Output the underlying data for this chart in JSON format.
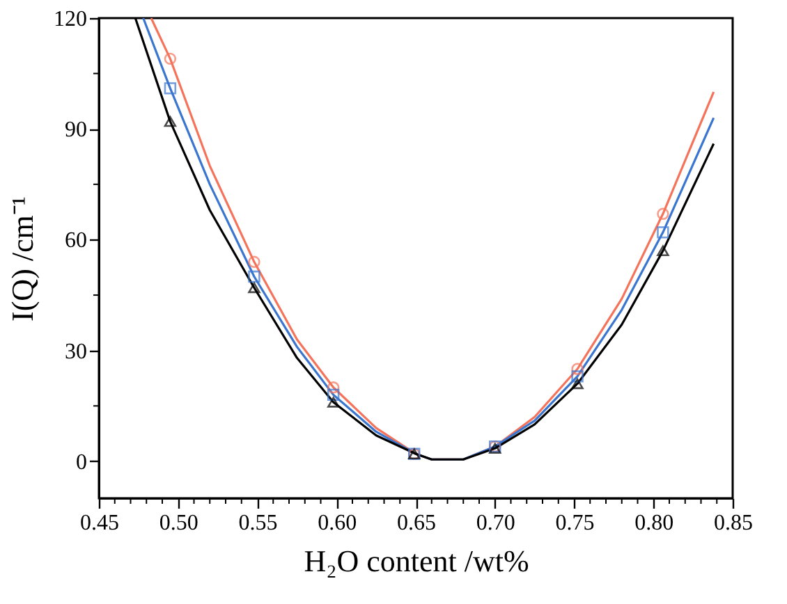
{
  "chart_data": {
    "type": "scatter",
    "xlabel": "H₂O content /wt%",
    "ylabel": "I(Q) /cm⁻¹",
    "xlim": [
      0.45,
      0.85
    ],
    "ylim": [
      -10,
      120
    ],
    "xticks": [
      0.45,
      {
        "value": 0.46,
        "label": null
      },
      {
        "value": 0.47,
        "label": null
      },
      {
        "value": 0.48,
        "label": null
      },
      {
        "value": 0.49,
        "label": null
      },
      "0.50",
      {
        "value": 0.51,
        "label": null
      },
      {
        "value": 0.52,
        "label": null
      },
      {
        "value": 0.53,
        "label": null
      },
      {
        "value": 0.54,
        "label": null
      },
      0.55,
      {
        "value": 0.56,
        "label": null
      },
      {
        "value": 0.57,
        "label": null
      },
      {
        "value": 0.58,
        "label": null
      },
      {
        "value": 0.59,
        "label": null
      },
      "0.60",
      {
        "value": 0.61,
        "label": null
      },
      {
        "value": 0.62,
        "label": null
      },
      {
        "value": 0.63,
        "label": null
      },
      {
        "value": 0.64,
        "label": null
      },
      0.65,
      {
        "value": 0.66,
        "label": null
      },
      {
        "value": 0.67,
        "label": null
      },
      {
        "value": 0.68,
        "label": null
      },
      {
        "value": 0.69,
        "label": null
      },
      "0.70",
      {
        "value": 0.71,
        "label": null
      },
      {
        "value": 0.72,
        "label": null
      },
      {
        "value": 0.73,
        "label": null
      },
      {
        "value": 0.74,
        "label": null
      },
      0.75,
      {
        "value": 0.76,
        "label": null
      },
      {
        "value": 0.77,
        "label": null
      },
      {
        "value": 0.78,
        "label": null
      },
      {
        "value": 0.79,
        "label": null
      },
      "0.80",
      {
        "value": 0.81,
        "label": null
      },
      {
        "value": 0.82,
        "label": null
      },
      {
        "value": 0.83,
        "label": null
      },
      {
        "value": 0.84,
        "label": null
      },
      0.85
    ],
    "yticks": [
      0,
      {
        "value": 15,
        "label": null
      },
      30,
      {
        "value": 45,
        "label": null
      },
      60,
      {
        "value": 75,
        "label": null
      },
      90,
      {
        "value": 105,
        "label": null
      },
      120
    ],
    "grid": false,
    "series": [
      {
        "type": "line",
        "color": "#f4735a",
        "marker": "none",
        "line_style": "solid",
        "x": [
          0.483,
          0.495,
          0.52,
          0.548,
          0.575,
          0.598,
          0.625,
          0.65,
          0.66,
          0.68,
          0.7,
          0.725,
          0.752,
          0.78,
          0.806,
          0.838
        ],
        "values": [
          120,
          109,
          80,
          54,
          33,
          20,
          9,
          2,
          0.5,
          0.5,
          4,
          12,
          25,
          44,
          67,
          100
        ]
      },
      {
        "type": "line",
        "color": "#3a76d0",
        "marker": "none",
        "line_style": "solid",
        "x": [
          0.478,
          0.495,
          0.52,
          0.548,
          0.575,
          0.598,
          0.625,
          0.65,
          0.66,
          0.68,
          0.7,
          0.725,
          0.752,
          0.78,
          0.806,
          0.838
        ],
        "values": [
          120,
          101,
          75,
          50,
          31,
          18,
          8,
          2,
          0.5,
          0.5,
          4,
          11,
          23,
          41,
          62,
          93
        ]
      },
      {
        "type": "line",
        "color": "#000000",
        "marker": "none",
        "line_style": "solid",
        "x": [
          0.473,
          0.495,
          0.52,
          0.548,
          0.575,
          0.598,
          0.625,
          0.65,
          0.66,
          0.68,
          0.7,
          0.725,
          0.752,
          0.78,
          0.806,
          0.838
        ],
        "values": [
          120,
          92,
          68,
          47,
          28,
          16,
          7,
          2,
          0.5,
          0.5,
          3.5,
          10,
          21,
          37,
          57,
          86
        ]
      },
      {
        "color": "#f4735a",
        "marker": "circle",
        "x": [
          0.495,
          0.548,
          0.598,
          0.649,
          0.7,
          0.752,
          0.806
        ],
        "values": [
          109,
          54,
          20,
          2,
          4,
          25,
          67
        ]
      },
      {
        "color": "#3a76d0",
        "marker": "square",
        "x": [
          0.495,
          0.548,
          0.598,
          0.649,
          0.7,
          0.752,
          0.806
        ],
        "values": [
          101,
          50,
          18,
          2,
          4,
          23,
          62
        ]
      },
      {
        "color": "#000000",
        "marker": "triangle",
        "x": [
          0.495,
          0.548,
          0.598,
          0.649,
          0.7,
          0.752,
          0.806
        ],
        "values": [
          92,
          47,
          16,
          2,
          3.5,
          21,
          57
        ]
      }
    ]
  }
}
